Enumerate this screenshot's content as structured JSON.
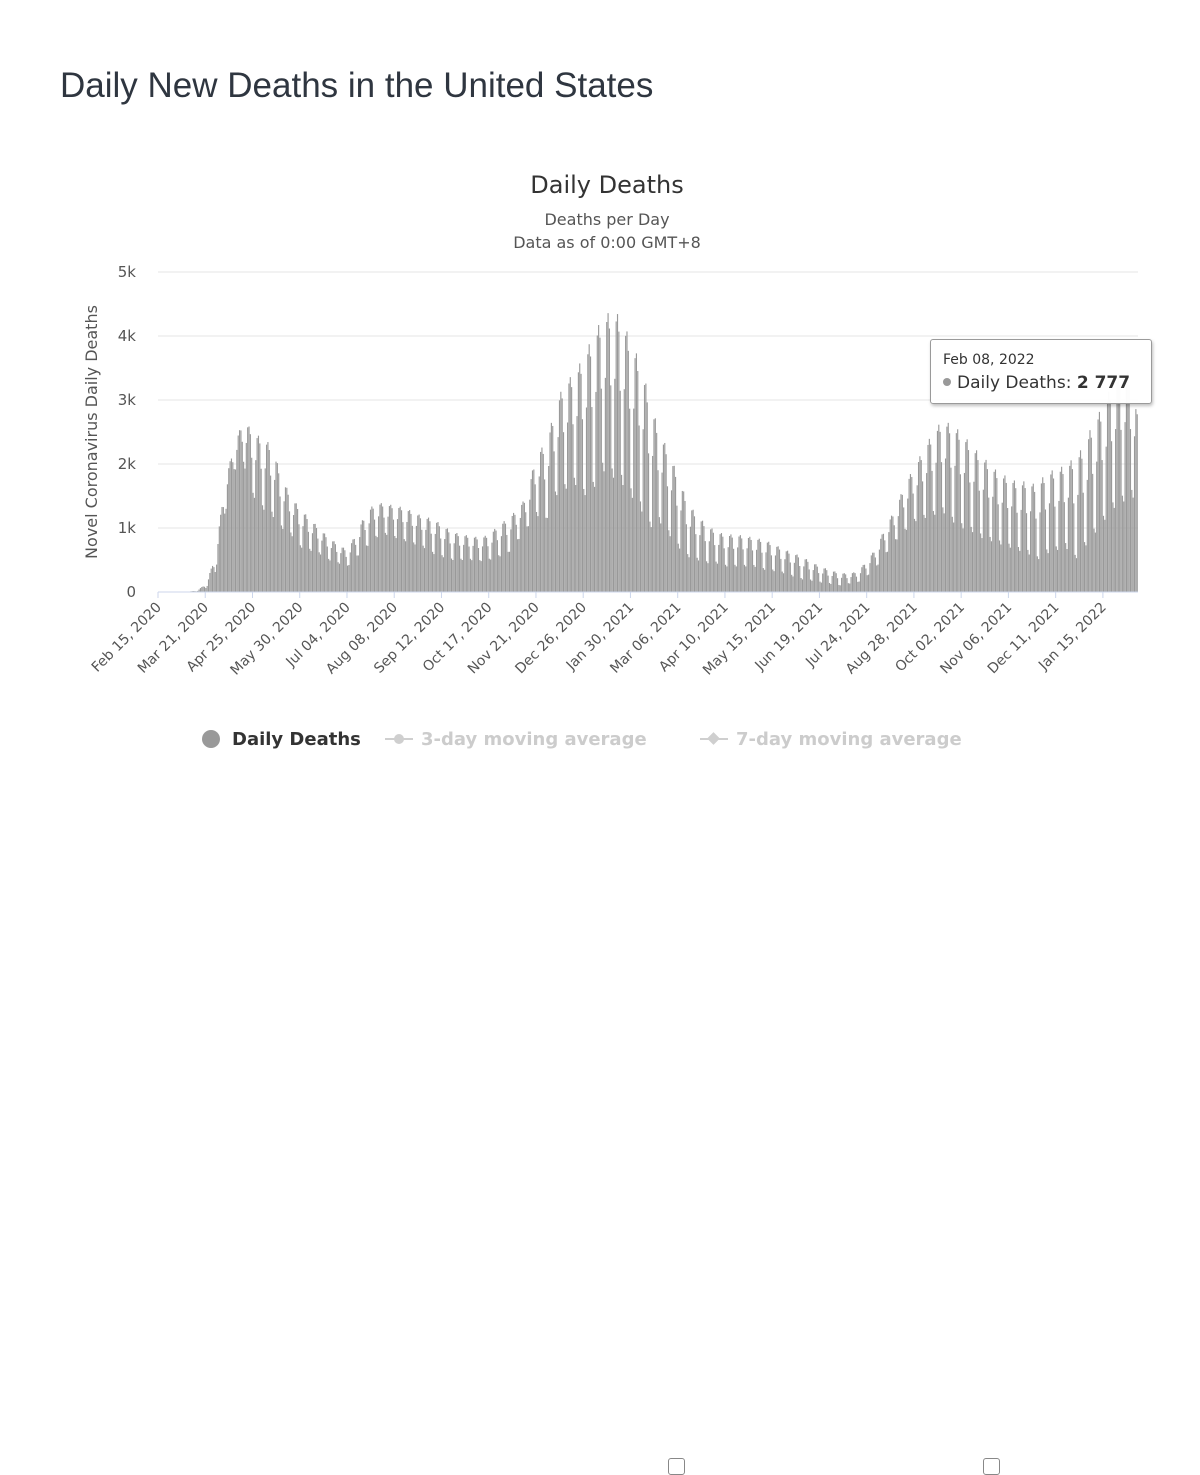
{
  "page": {
    "title": "Daily New Deaths in the United States"
  },
  "colors": {
    "bar": "#999999",
    "grid": "#e6e6e6",
    "axis": "#ccd6eb",
    "legend_inactive": "#cccccc"
  },
  "chart_data": {
    "type": "bar",
    "title": "Daily Deaths",
    "subtitle_lines": [
      "Deaths per Day",
      "Data as of 0:00 GMT+8"
    ],
    "ylabel": "Novel Coronavirus Daily Deaths",
    "xlabel": "",
    "ylim": [
      0,
      5000
    ],
    "y_ticks": [
      {
        "value": 0,
        "label": "0"
      },
      {
        "value": 1000,
        "label": "1k"
      },
      {
        "value": 2000,
        "label": "2k"
      },
      {
        "value": 3000,
        "label": "3k"
      },
      {
        "value": 4000,
        "label": "4k"
      },
      {
        "value": 5000,
        "label": "5k"
      }
    ],
    "x_range": [
      "2020-02-15",
      "2022-02-09"
    ],
    "x_tick_labels": [
      "Feb 15, 2020",
      "Mar 21, 2020",
      "Apr 25, 2020",
      "May 30, 2020",
      "Jul 04, 2020",
      "Aug 08, 2020",
      "Sep 12, 2020",
      "Oct 17, 2020",
      "Nov 21, 2020",
      "Dec 26, 2020",
      "Jan 30, 2021",
      "Mar 06, 2021",
      "Apr 10, 2021",
      "May 15, 2021",
      "Jun 19, 2021",
      "Jul 24, 2021",
      "Aug 28, 2021",
      "Oct 02, 2021",
      "Nov 06, 2021",
      "Dec 11, 2021",
      "Jan 15, 2022"
    ],
    "grid": true,
    "legend_position": "bottom-center",
    "series": [
      {
        "name": "Daily Deaths",
        "color": "#999999",
        "weekly_points": [
          [
            "2020-02-15",
            0,
            0
          ],
          [
            "2020-02-22",
            0,
            0
          ],
          [
            "2020-02-29",
            0,
            0
          ],
          [
            "2020-03-07",
            3,
            5
          ],
          [
            "2020-03-14",
            10,
            20
          ],
          [
            "2020-03-21",
            60,
            120
          ],
          [
            "2020-03-28",
            300,
            550
          ],
          [
            "2020-04-04",
            1200,
            1700
          ],
          [
            "2020-04-11",
            1900,
            2300
          ],
          [
            "2020-04-18",
            2000,
            2700
          ],
          [
            "2020-04-25",
            1500,
            2500
          ],
          [
            "2020-05-02",
            1300,
            2400
          ],
          [
            "2020-05-09",
            1200,
            2300
          ],
          [
            "2020-05-16",
            1000,
            1800
          ],
          [
            "2020-05-23",
            900,
            1500
          ],
          [
            "2020-05-30",
            700,
            1300
          ],
          [
            "2020-06-06",
            650,
            1150
          ],
          [
            "2020-06-13",
            600,
            1000
          ],
          [
            "2020-06-20",
            500,
            850
          ],
          [
            "2020-06-27",
            450,
            750
          ],
          [
            "2020-07-04",
            400,
            650
          ],
          [
            "2020-07-11",
            550,
            950
          ],
          [
            "2020-07-18",
            700,
            1250
          ],
          [
            "2020-07-25",
            850,
            1400
          ],
          [
            "2020-08-01",
            900,
            1380
          ],
          [
            "2020-08-08",
            850,
            1350
          ],
          [
            "2020-08-15",
            800,
            1320
          ],
          [
            "2020-08-22",
            750,
            1250
          ],
          [
            "2020-08-29",
            700,
            1180
          ],
          [
            "2020-09-05",
            600,
            1150
          ],
          [
            "2020-09-12",
            550,
            1050
          ],
          [
            "2020-09-19",
            500,
            950
          ],
          [
            "2020-09-26",
            500,
            900
          ],
          [
            "2020-10-03",
            500,
            880
          ],
          [
            "2020-10-10",
            480,
            850
          ],
          [
            "2020-10-17",
            500,
            900
          ],
          [
            "2020-10-24",
            550,
            1050
          ],
          [
            "2020-10-31",
            600,
            1150
          ],
          [
            "2020-11-07",
            800,
            1300
          ],
          [
            "2020-11-14",
            1000,
            1500
          ],
          [
            "2020-11-21",
            1200,
            2200
          ],
          [
            "2020-11-28",
            1100,
            2300
          ],
          [
            "2020-12-05",
            1500,
            2900
          ],
          [
            "2020-12-12",
            1600,
            3300
          ],
          [
            "2020-12-19",
            1700,
            3400
          ],
          [
            "2020-12-26",
            1500,
            3700
          ],
          [
            "2021-01-02",
            1600,
            4000
          ],
          [
            "2021-01-09",
            1900,
            4300
          ],
          [
            "2021-01-16",
            1800,
            4400
          ],
          [
            "2021-01-23",
            1700,
            4300
          ],
          [
            "2021-01-30",
            1500,
            3900
          ],
          [
            "2021-02-06",
            1300,
            3600
          ],
          [
            "2021-02-13",
            1000,
            3000
          ],
          [
            "2021-02-20",
            1100,
            2500
          ],
          [
            "2021-02-27",
            900,
            2200
          ],
          [
            "2021-03-06",
            700,
            1800
          ],
          [
            "2021-03-13",
            550,
            1400
          ],
          [
            "2021-03-20",
            500,
            1200
          ],
          [
            "2021-03-27",
            450,
            1050
          ],
          [
            "2021-04-03",
            450,
            950
          ],
          [
            "2021-04-10",
            400,
            900
          ],
          [
            "2021-04-17",
            400,
            900
          ],
          [
            "2021-04-24",
            400,
            880
          ],
          [
            "2021-05-01",
            400,
            850
          ],
          [
            "2021-05-08",
            350,
            820
          ],
          [
            "2021-05-15",
            330,
            760
          ],
          [
            "2021-05-22",
            300,
            680
          ],
          [
            "2021-05-29",
            250,
            620
          ],
          [
            "2021-06-05",
            200,
            560
          ],
          [
            "2021-06-12",
            180,
            480
          ],
          [
            "2021-06-19",
            150,
            400
          ],
          [
            "2021-06-26",
            130,
            350
          ],
          [
            "2021-07-03",
            100,
            300
          ],
          [
            "2021-07-10",
            130,
            290
          ],
          [
            "2021-07-17",
            150,
            320
          ],
          [
            "2021-07-24",
            250,
            500
          ],
          [
            "2021-07-31",
            400,
            700
          ],
          [
            "2021-08-07",
            600,
            1050
          ],
          [
            "2021-08-14",
            800,
            1300
          ],
          [
            "2021-08-21",
            950,
            1700
          ],
          [
            "2021-08-28",
            1100,
            1950
          ],
          [
            "2021-09-04",
            1150,
            2250
          ],
          [
            "2021-09-11",
            1200,
            2500
          ],
          [
            "2021-09-18",
            1250,
            2700
          ],
          [
            "2021-09-25",
            1100,
            2600
          ],
          [
            "2021-10-02",
            1000,
            2500
          ],
          [
            "2021-10-09",
            950,
            2300
          ],
          [
            "2021-10-16",
            850,
            2150
          ],
          [
            "2021-10-23",
            800,
            2000
          ],
          [
            "2021-10-30",
            750,
            1850
          ],
          [
            "2021-11-06",
            700,
            1800
          ],
          [
            "2021-11-13",
            650,
            1700
          ],
          [
            "2021-11-20",
            600,
            1750
          ],
          [
            "2021-11-27",
            500,
            1650
          ],
          [
            "2021-12-04",
            600,
            1900
          ],
          [
            "2021-12-11",
            650,
            1900
          ],
          [
            "2021-12-18",
            700,
            2000
          ],
          [
            "2021-12-25",
            500,
            2100
          ],
          [
            "2022-01-01",
            700,
            2300
          ],
          [
            "2022-01-08",
            900,
            2700
          ],
          [
            "2022-01-15",
            1100,
            2900
          ],
          [
            "2022-01-22",
            1300,
            3300
          ],
          [
            "2022-01-29",
            1400,
            3500
          ],
          [
            "2022-02-05",
            1500,
            3400
          ],
          [
            "2022-02-09",
            1400,
            2777
          ]
        ]
      },
      {
        "name": "3-day moving average",
        "visible": false
      },
      {
        "name": "7-day moving average",
        "visible": false
      }
    ],
    "tooltip": {
      "date": "Feb 08, 2022",
      "series_label": "Daily Deaths",
      "value": "2 777"
    }
  },
  "legend": {
    "items": [
      "Daily Deaths",
      "3-day moving average",
      "7-day moving average"
    ]
  }
}
